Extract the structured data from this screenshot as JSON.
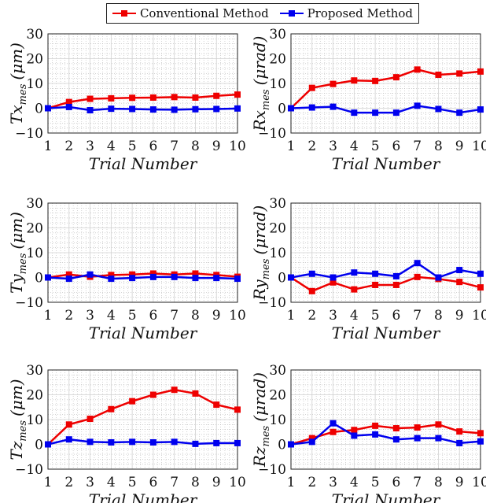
{
  "legend": {
    "conventional": "Conventional Method",
    "proposed": "Proposed Method"
  },
  "colors": {
    "conventional": "#ee0000",
    "proposed": "#0000ee"
  },
  "chart_data": [
    {
      "type": "line",
      "ylabel_main": "Tx",
      "ylabel_sub": "mes",
      "ylabel_unit": "(μm)",
      "xlabel": "Trial Number",
      "ylim": [
        -10,
        30
      ],
      "xlim": [
        1,
        10
      ],
      "x": [
        1,
        2,
        3,
        4,
        5,
        6,
        7,
        8,
        9,
        10
      ],
      "series": [
        {
          "name": "Conventional Method",
          "values": [
            0,
            2.5,
            3.8,
            4.0,
            4.2,
            4.3,
            4.5,
            4.3,
            5.0,
            5.5
          ]
        },
        {
          "name": "Proposed Method",
          "values": [
            0,
            0.5,
            -0.8,
            -0.2,
            -0.3,
            -0.5,
            -0.6,
            -0.4,
            -0.3,
            -0.1
          ]
        }
      ]
    },
    {
      "type": "line",
      "ylabel_main": "Rx",
      "ylabel_sub": "mes",
      "ylabel_unit": "(μrad)",
      "xlabel": "Trial Number",
      "ylim": [
        -10,
        30
      ],
      "xlim": [
        1,
        10
      ],
      "x": [
        1,
        2,
        3,
        4,
        5,
        6,
        7,
        8,
        9,
        10
      ],
      "series": [
        {
          "name": "Conventional Method",
          "values": [
            0,
            8.2,
            9.8,
            11.2,
            11.0,
            12.5,
            15.6,
            13.5,
            14.0,
            14.8
          ]
        },
        {
          "name": "Proposed Method",
          "values": [
            0,
            0.3,
            0.6,
            -1.8,
            -1.8,
            -1.8,
            1.0,
            -0.3,
            -1.8,
            -0.5
          ]
        }
      ]
    },
    {
      "type": "line",
      "ylabel_main": "Ty",
      "ylabel_sub": "mes",
      "ylabel_unit": "(μm)",
      "xlabel": "Trial Number",
      "ylim": [
        -10,
        30
      ],
      "xlim": [
        1,
        10
      ],
      "x": [
        1,
        2,
        3,
        4,
        5,
        6,
        7,
        8,
        9,
        10
      ],
      "series": [
        {
          "name": "Conventional Method",
          "values": [
            0,
            1.2,
            0.3,
            1.0,
            1.2,
            1.6,
            1.2,
            1.6,
            1.0,
            0.3
          ]
        },
        {
          "name": "Proposed Method",
          "values": [
            0,
            -0.5,
            1.2,
            -0.5,
            -0.2,
            0.2,
            0.2,
            -0.2,
            -0.2,
            -0.5
          ]
        }
      ]
    },
    {
      "type": "line",
      "ylabel_main": "Ry",
      "ylabel_sub": "mes",
      "ylabel_unit": "(μrad)",
      "xlabel": "Trial Number",
      "ylim": [
        -10,
        30
      ],
      "xlim": [
        1,
        10
      ],
      "x": [
        1,
        2,
        3,
        4,
        5,
        6,
        7,
        8,
        9,
        10
      ],
      "series": [
        {
          "name": "Conventional Method",
          "values": [
            0,
            -5.5,
            -2.0,
            -4.8,
            -3.0,
            -3.0,
            0.2,
            -0.6,
            -1.8,
            -4.0
          ]
        },
        {
          "name": "Proposed Method",
          "values": [
            0,
            1.5,
            0.0,
            2.0,
            1.5,
            0.5,
            5.8,
            0.0,
            3.0,
            1.5
          ]
        }
      ]
    },
    {
      "type": "line",
      "ylabel_main": "Tz",
      "ylabel_sub": "mes",
      "ylabel_unit": "(μm)",
      "xlabel": "Trial Number",
      "ylim": [
        -10,
        30
      ],
      "xlim": [
        1,
        10
      ],
      "x": [
        1,
        2,
        3,
        4,
        5,
        6,
        7,
        8,
        9,
        10
      ],
      "series": [
        {
          "name": "Conventional Method",
          "values": [
            0,
            8.0,
            10.3,
            14.2,
            17.4,
            20.0,
            22.0,
            20.5,
            16.0,
            14.0
          ]
        },
        {
          "name": "Proposed Method",
          "values": [
            0,
            2.0,
            1.0,
            0.8,
            1.0,
            0.8,
            1.0,
            0.2,
            0.5,
            0.5
          ]
        }
      ]
    },
    {
      "type": "line",
      "ylabel_main": "Rz",
      "ylabel_sub": "mes",
      "ylabel_unit": "(μrad)",
      "xlabel": "Trial Number",
      "ylim": [
        -10,
        30
      ],
      "xlim": [
        1,
        10
      ],
      "x": [
        1,
        2,
        3,
        4,
        5,
        6,
        7,
        8,
        9,
        10
      ],
      "series": [
        {
          "name": "Conventional Method",
          "values": [
            0,
            2.5,
            5.0,
            5.8,
            7.5,
            6.5,
            6.8,
            8.0,
            5.2,
            4.5
          ]
        },
        {
          "name": "Proposed Method",
          "values": [
            0,
            1.0,
            8.5,
            3.5,
            4.0,
            2.0,
            2.5,
            2.5,
            0.5,
            1.2
          ]
        }
      ]
    }
  ]
}
